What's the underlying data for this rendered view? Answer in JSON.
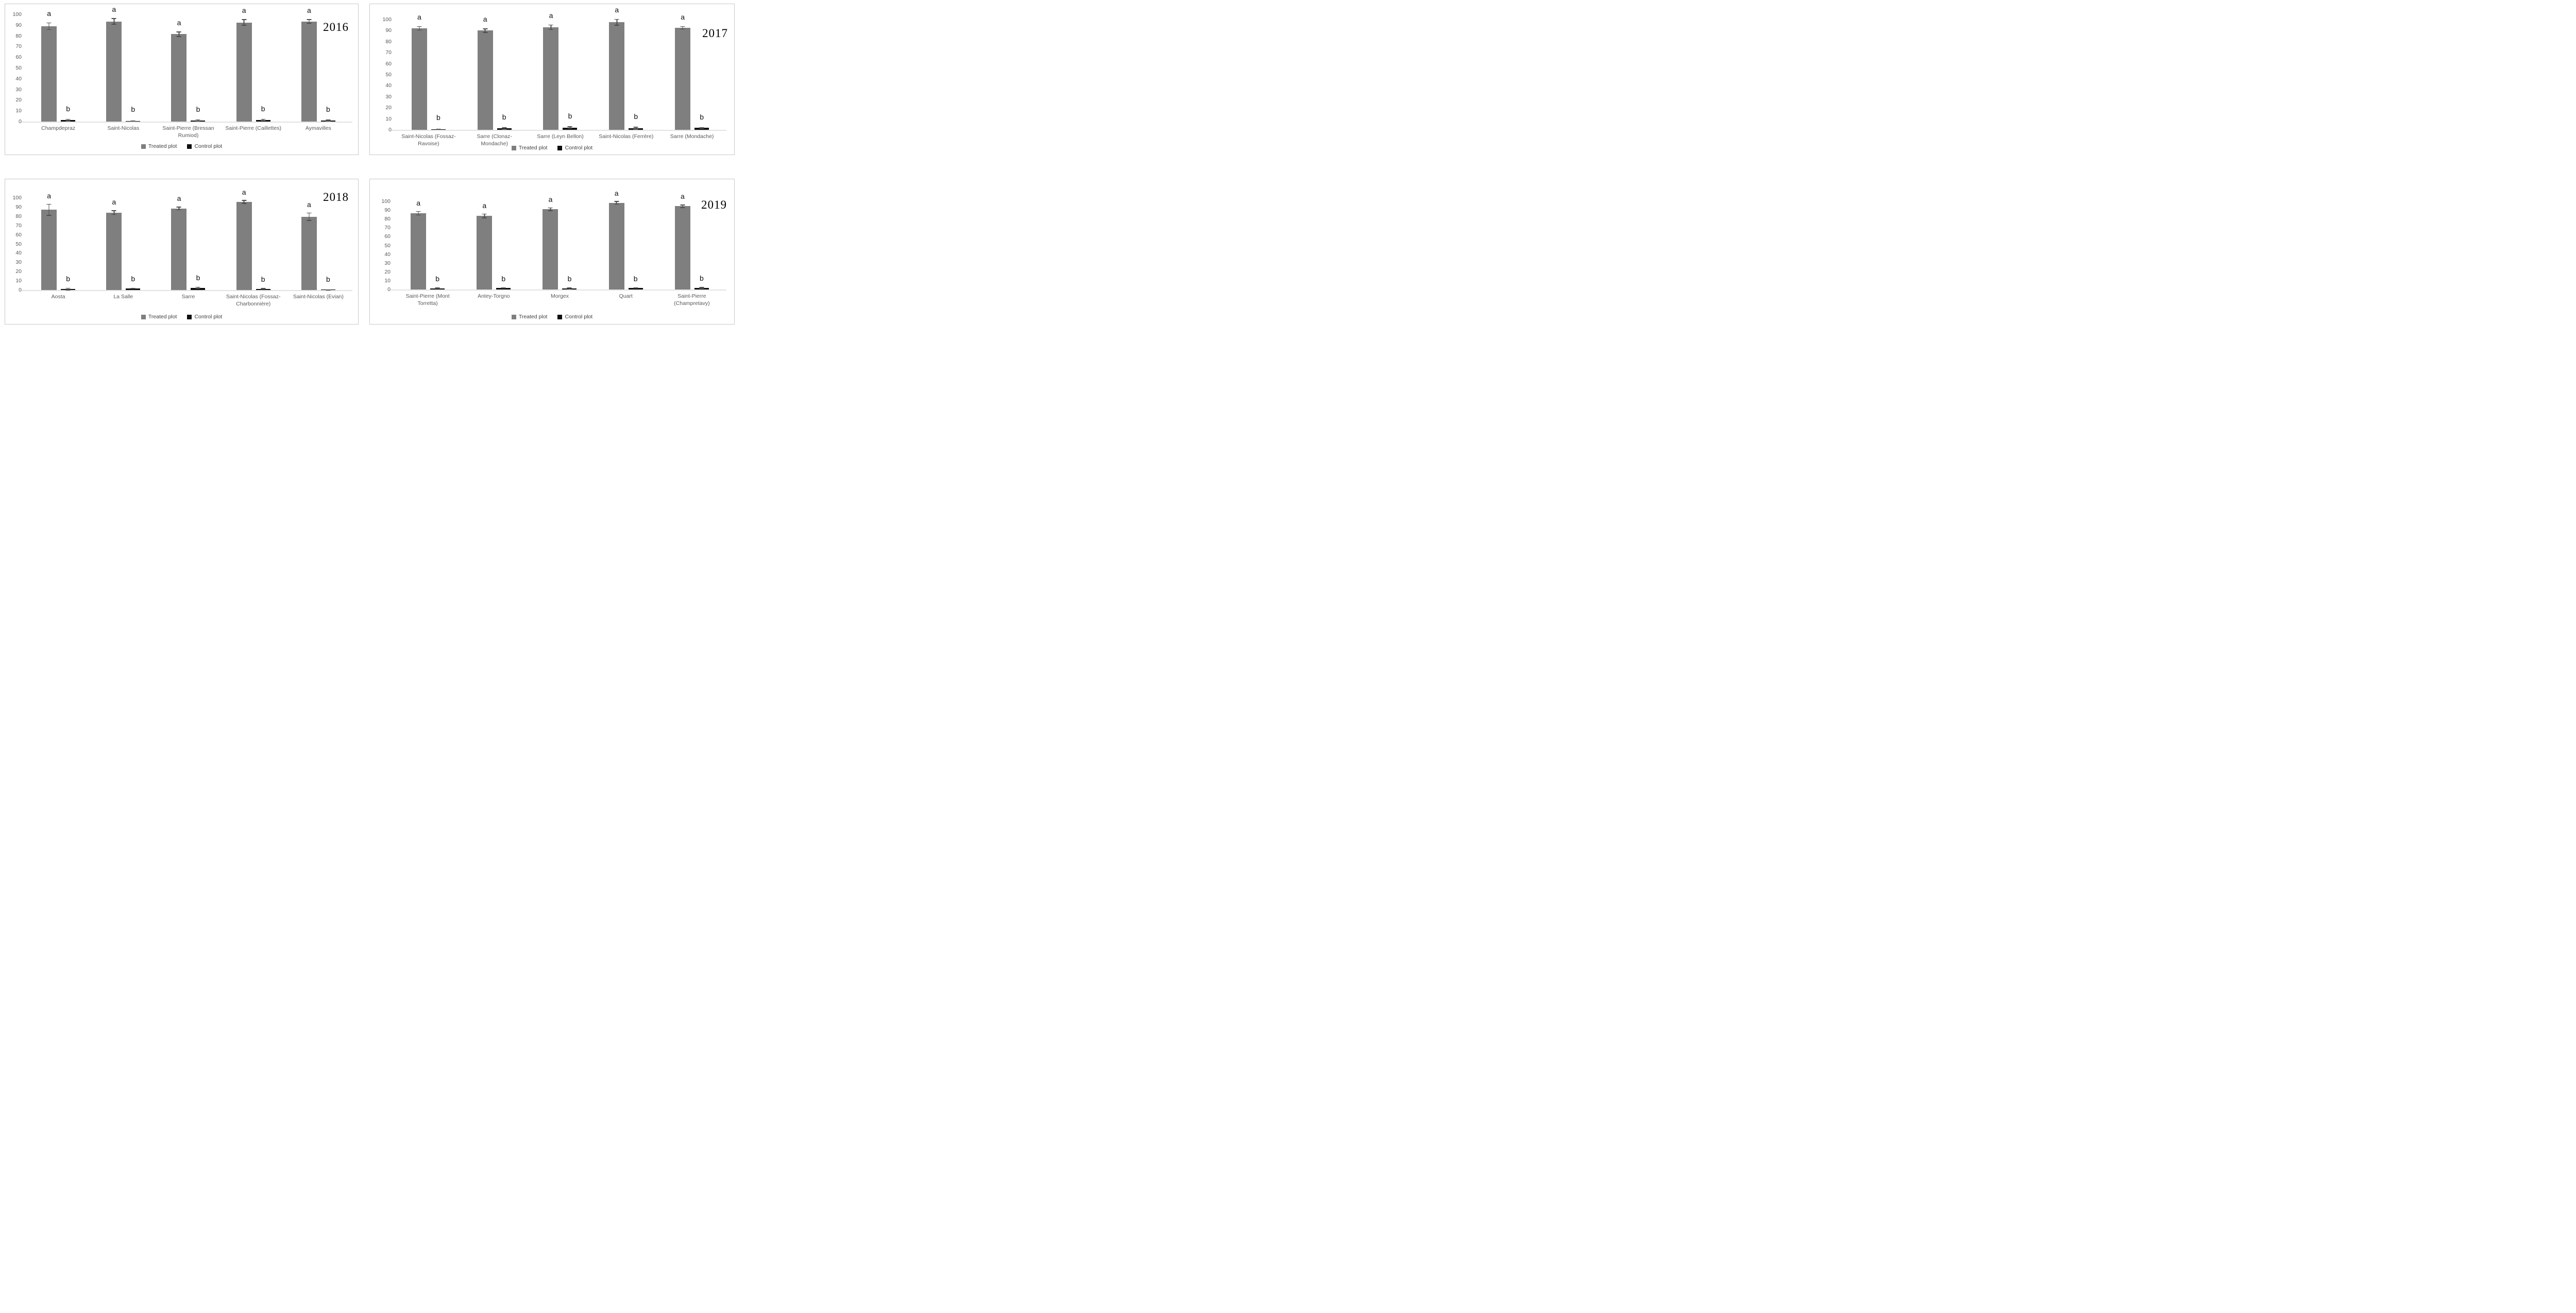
{
  "colors": {
    "treated": "#7f7f7f",
    "control": "#0d0d0d",
    "error_bar": "#4d4d4d",
    "axis_text": "#595959",
    "baseline": "#e2e2e2",
    "panel_border": "#c9c9c9",
    "letter": "#0d0d0d"
  },
  "legend_labels": [
    "Treated plot",
    "Control plot"
  ],
  "chart_data": [
    {
      "type": "bar",
      "title": "2016",
      "xlabel": "",
      "ylabel": "",
      "ylim": [
        0,
        100
      ],
      "yticks": [
        0,
        10,
        20,
        30,
        40,
        50,
        60,
        70,
        80,
        90,
        100
      ],
      "grid": false,
      "legend_position": "bottom",
      "categories": [
        "Champdepraz",
        "Saint-Nicolas",
        "Saint-Pierre (Bressan Rumiod)",
        "Saint-Pierre (Caillettes)",
        "Aymavilles"
      ],
      "series": [
        {
          "name": "Treated plot",
          "values": [
            89,
            93.5,
            81.5,
            92.5,
            93.5
          ],
          "errors": [
            3.5,
            3,
            2.5,
            3,
            2
          ],
          "letters": [
            "a",
            "a",
            "a",
            "a",
            "a"
          ]
        },
        {
          "name": "Control plot",
          "values": [
            1.3,
            0.4,
            1,
            1.5,
            1
          ],
          "errors": [
            1.2,
            0.4,
            1,
            1,
            0.8
          ],
          "letters": [
            "b",
            "b",
            "b",
            "b",
            "b"
          ]
        }
      ]
    },
    {
      "type": "bar",
      "title": "2017",
      "xlabel": "",
      "ylabel": "",
      "ylim": [
        0,
        100
      ],
      "yticks": [
        0,
        10,
        20,
        30,
        40,
        50,
        60,
        70,
        80,
        90,
        100
      ],
      "grid": false,
      "legend_position": "bottom",
      "categories": [
        "Saint-Nicolas (Fossaz-Ravoise)",
        "Sarre (Clonaz-Mondache)",
        "Sarre (Leyn Bellon)",
        "Saint-Nicolas (Ferrère)",
        "Sarre (Mondache)"
      ],
      "series": [
        {
          "name": "Treated plot",
          "values": [
            92,
            90,
            93,
            97.5,
            92.5
          ],
          "errors": [
            2,
            2,
            2.5,
            3,
            1.5
          ],
          "letters": [
            "a",
            "a",
            "a",
            "a",
            "a"
          ]
        },
        {
          "name": "Control plot",
          "values": [
            0.5,
            1.2,
            2,
            1.5,
            1.8
          ],
          "errors": [
            0.3,
            1,
            1.2,
            1.3,
            0.7
          ],
          "letters": [
            "b",
            "b",
            "b",
            "b",
            "b"
          ]
        }
      ]
    },
    {
      "type": "bar",
      "title": "2018",
      "xlabel": "",
      "ylabel": "",
      "ylim": [
        0,
        100
      ],
      "yticks": [
        0,
        10,
        20,
        30,
        40,
        50,
        60,
        70,
        80,
        90,
        100
      ],
      "grid": false,
      "legend_position": "bottom",
      "categories": [
        "Aosta",
        "La Salle",
        "Sarre",
        "Saint-Nicolas (Fossaz-Charbonnière)",
        "Saint-Nicolas (Evian)"
      ],
      "series": [
        {
          "name": "Treated plot",
          "values": [
            87,
            84,
            88.5,
            95.5,
            79.5
          ],
          "errors": [
            6.5,
            2.5,
            2,
            2,
            4.5
          ],
          "letters": [
            "a",
            "a",
            "a",
            "a",
            "a"
          ]
        },
        {
          "name": "Control plot",
          "values": [
            1,
            1.7,
            2.2,
            1.4,
            0.3
          ],
          "errors": [
            1.3,
            0.8,
            1.2,
            0.7,
            0.2
          ],
          "letters": [
            "b",
            "b",
            "b",
            "b",
            "b"
          ]
        }
      ]
    },
    {
      "type": "bar",
      "title": "2019",
      "xlabel": "",
      "ylabel": "",
      "ylim": [
        0,
        100
      ],
      "yticks": [
        0,
        10,
        20,
        30,
        40,
        50,
        60,
        70,
        80,
        90,
        100
      ],
      "grid": false,
      "legend_position": "bottom",
      "categories": [
        "Saint-Pierre (Mont Torretta)",
        "Antey-Torgno",
        "Morgex",
        "Quart",
        "Saint-Pierre (Champretavy)"
      ],
      "series": [
        {
          "name": "Treated plot",
          "values": [
            86.5,
            83.5,
            91,
            98.5,
            94.5
          ],
          "errors": [
            2.5,
            2.5,
            2,
            2,
            2
          ],
          "letters": [
            "a",
            "a",
            "a",
            "a",
            "a"
          ]
        },
        {
          "name": "Control plot",
          "values": [
            1.3,
            1.7,
            1,
            1.8,
            1.7
          ],
          "errors": [
            1,
            0.5,
            1.2,
            0.5,
            1
          ],
          "letters": [
            "b",
            "b",
            "b",
            "b",
            "b"
          ]
        }
      ]
    }
  ]
}
